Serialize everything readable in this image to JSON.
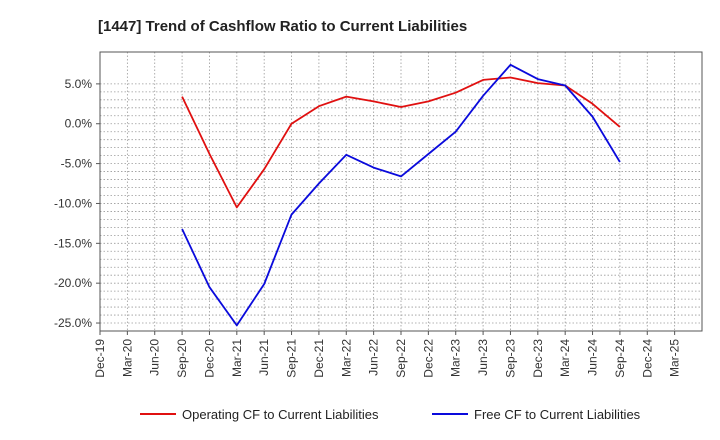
{
  "chart_data": {
    "type": "line",
    "title": "[1447]  Trend of Cashflow Ratio to Current Liabilities",
    "xlabel": "",
    "ylabel": "",
    "x_ticks": [
      "Dec-19",
      "Mar-20",
      "Jun-20",
      "Sep-20",
      "Dec-20",
      "Mar-21",
      "Jun-21",
      "Sep-21",
      "Dec-21",
      "Mar-22",
      "Jun-22",
      "Sep-22",
      "Dec-22",
      "Mar-23",
      "Jun-23",
      "Sep-23",
      "Dec-23",
      "Mar-24",
      "Jun-24",
      "Sep-24",
      "Dec-24",
      "Mar-25"
    ],
    "y_ticks": [
      "5.0%",
      "0.0%",
      "-5.0%",
      "-10.0%",
      "-15.0%",
      "-20.0%",
      "-25.0%"
    ],
    "y_tick_values": [
      5,
      0,
      -5,
      -10,
      -15,
      -20,
      -25
    ],
    "ylim": [
      -26,
      9
    ],
    "y_unit": "%",
    "grid": true,
    "legend_position": "bottom",
    "series": [
      {
        "name": "Operating CF to Current Liabilities",
        "color": "#e01010",
        "x": [
          "Sep-20",
          "Dec-20",
          "Mar-21",
          "Jun-21",
          "Sep-21",
          "Dec-21",
          "Mar-22",
          "Jun-22",
          "Sep-22",
          "Dec-22",
          "Mar-23",
          "Jun-23",
          "Sep-23",
          "Dec-23",
          "Mar-24",
          "Jun-24",
          "Sep-24"
        ],
        "values": [
          3.4,
          -3.8,
          -10.5,
          -5.7,
          0.0,
          2.2,
          3.4,
          2.8,
          2.1,
          2.8,
          3.9,
          5.5,
          5.8,
          5.1,
          4.8,
          2.5,
          -0.4
        ]
      },
      {
        "name": "Free CF to Current Liabilities",
        "color": "#0a0adc",
        "x": [
          "Sep-20",
          "Dec-20",
          "Mar-21",
          "Jun-21",
          "Sep-21",
          "Dec-21",
          "Mar-22",
          "Jun-22",
          "Sep-22",
          "Dec-22",
          "Mar-23",
          "Jun-23",
          "Sep-23",
          "Dec-23",
          "Mar-24",
          "Jun-24",
          "Sep-24"
        ],
        "values": [
          -13.2,
          -20.5,
          -25.3,
          -20.1,
          -11.4,
          -7.5,
          -3.9,
          -5.5,
          -6.6,
          -3.8,
          -1.0,
          3.5,
          7.4,
          5.6,
          4.8,
          0.9,
          -4.8
        ]
      }
    ]
  }
}
